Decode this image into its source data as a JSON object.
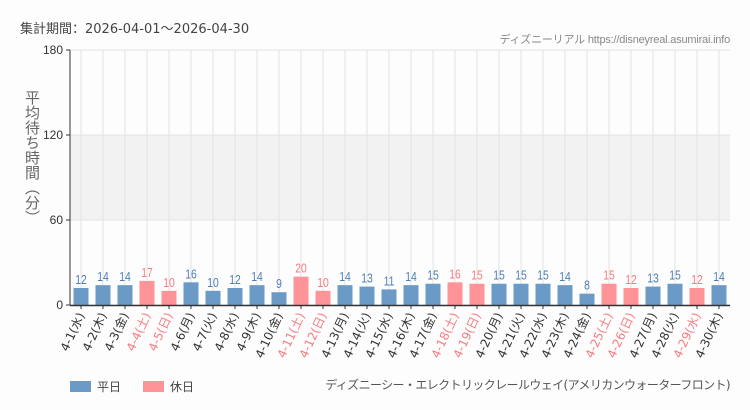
{
  "header": {
    "period_label": "集計期間：2026-04-01〜2026-04-30",
    "credit": "ディズニーリアル https://disneyreal.asumirai.info"
  },
  "legend": {
    "weekday_label": "平日",
    "holiday_label": "休日"
  },
  "footer": {
    "attraction_name": "ディズニーシー・エレクトリックレールウェイ(アメリカンウォーターフロント)"
  },
  "colors": {
    "weekday": "#6b9ac6",
    "holiday": "#ff9498",
    "weekday_text": "#4e7fb5",
    "holiday_text": "#f77c82",
    "band": "#f2f2f2"
  },
  "chart_data": {
    "type": "bar",
    "title": "",
    "xlabel": "",
    "ylabel": "平均待ち時間（分）",
    "ylim": [
      0,
      180
    ],
    "yticks": [
      0,
      60,
      120,
      180
    ],
    "grid": true,
    "shaded_band": [
      60,
      120
    ],
    "legend_position": "bottom-left",
    "categories": [
      "4-1(水)",
      "4-2(木)",
      "4-3(金)",
      "4-4(土)",
      "4-5(日)",
      "4-6(月)",
      "4-7(火)",
      "4-8(水)",
      "4-9(木)",
      "4-10(金)",
      "4-11(土)",
      "4-12(日)",
      "4-13(月)",
      "4-14(火)",
      "4-15(水)",
      "4-16(木)",
      "4-17(金)",
      "4-18(土)",
      "4-19(日)",
      "4-20(月)",
      "4-21(火)",
      "4-22(水)",
      "4-23(木)",
      "4-24(金)",
      "4-25(土)",
      "4-26(日)",
      "4-27(月)",
      "4-28(火)",
      "4-29(水)",
      "4-30(木)"
    ],
    "values": [
      12,
      14,
      14,
      17,
      10,
      16,
      10,
      12,
      14,
      9,
      20,
      10,
      14,
      13,
      11,
      14,
      15,
      16,
      15,
      15,
      15,
      15,
      14,
      8,
      15,
      12,
      13,
      15,
      12,
      14
    ],
    "day_type": [
      "平日",
      "平日",
      "平日",
      "休日",
      "休日",
      "平日",
      "平日",
      "平日",
      "平日",
      "平日",
      "休日",
      "休日",
      "平日",
      "平日",
      "平日",
      "平日",
      "平日",
      "休日",
      "休日",
      "平日",
      "平日",
      "平日",
      "平日",
      "平日",
      "休日",
      "休日",
      "平日",
      "平日",
      "休日",
      "平日"
    ]
  }
}
